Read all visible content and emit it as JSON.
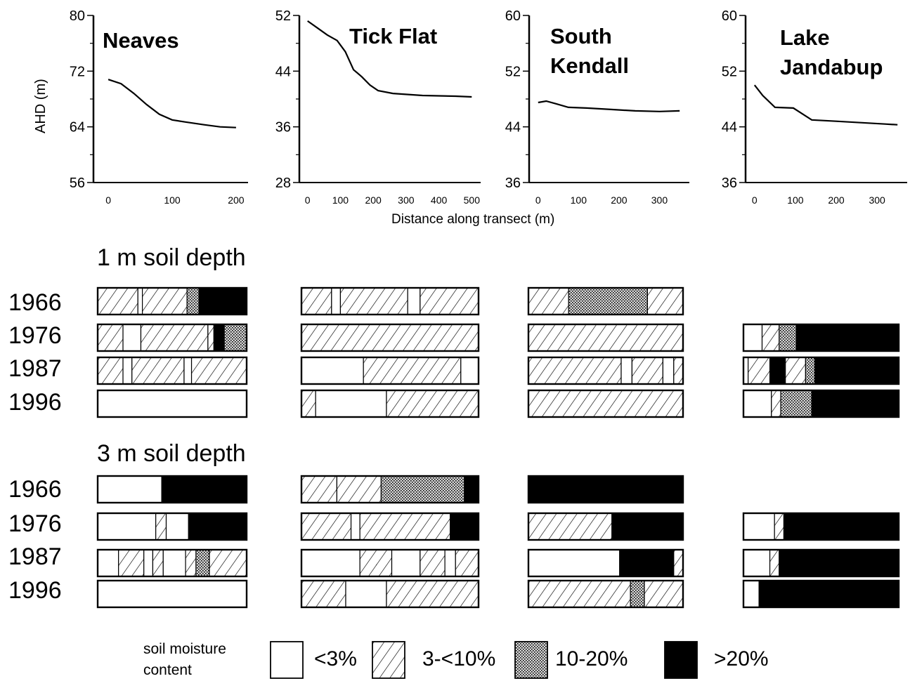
{
  "chart_data": {
    "type": "line",
    "x_label": "Distance along transect (m)",
    "y_label": "AHD (m)",
    "profiles": [
      {
        "name": "Neaves",
        "ylim": [
          56,
          80
        ],
        "yticks": [
          80,
          72,
          64,
          56
        ],
        "xlim": [
          -10,
          210
        ],
        "xticks": [
          0,
          100,
          200
        ],
        "points": [
          [
            0,
            70.8
          ],
          [
            20,
            70.2
          ],
          [
            40,
            68.8
          ],
          [
            60,
            67.2
          ],
          [
            80,
            65.8
          ],
          [
            100,
            65.0
          ],
          [
            120,
            64.7
          ],
          [
            150,
            64.3
          ],
          [
            175,
            64.0
          ],
          [
            200,
            63.9
          ]
        ]
      },
      {
        "name": "Tick Flat",
        "ylim": [
          28,
          52
        ],
        "yticks": [
          52,
          44,
          36,
          28
        ],
        "xlim": [
          -10,
          510
        ],
        "xticks": [
          0,
          100,
          200,
          300,
          400,
          500
        ],
        "points": [
          [
            0,
            51.2
          ],
          [
            30,
            50.2
          ],
          [
            60,
            49.2
          ],
          [
            90,
            48.4
          ],
          [
            115,
            46.8
          ],
          [
            140,
            44.2
          ],
          [
            165,
            43.2
          ],
          [
            190,
            42.0
          ],
          [
            215,
            41.2
          ],
          [
            260,
            40.8
          ],
          [
            350,
            40.5
          ],
          [
            450,
            40.4
          ],
          [
            500,
            40.3
          ]
        ]
      },
      {
        "name": "South Kendall",
        "ylim": [
          36,
          60
        ],
        "yticks": [
          60,
          52,
          44,
          36
        ],
        "xlim": [
          -10,
          360
        ],
        "xticks": [
          0,
          100,
          200,
          300
        ],
        "points": [
          [
            0,
            47.5
          ],
          [
            20,
            47.7
          ],
          [
            45,
            47.3
          ],
          [
            75,
            46.8
          ],
          [
            120,
            46.7
          ],
          [
            180,
            46.5
          ],
          [
            240,
            46.3
          ],
          [
            300,
            46.2
          ],
          [
            350,
            46.3
          ]
        ]
      },
      {
        "name": "Lake Jandabup",
        "ylim": [
          36,
          60
        ],
        "yticks": [
          60,
          52,
          44,
          36
        ],
        "xlim": [
          -10,
          360
        ],
        "xticks": [
          0,
          100,
          200,
          300
        ],
        "points": [
          [
            0,
            50.0
          ],
          [
            20,
            48.5
          ],
          [
            50,
            46.8
          ],
          [
            95,
            46.7
          ],
          [
            140,
            45.0
          ],
          [
            200,
            44.8
          ],
          [
            260,
            44.6
          ],
          [
            320,
            44.4
          ],
          [
            350,
            44.3
          ]
        ]
      }
    ],
    "soil_depths": [
      {
        "heading": "1 m soil depth",
        "years": [
          {
            "year": "1966",
            "bars": [
              [
                [
                  "hatch",
                  0.27
                ],
                [
                  "white",
                  0.03
                ],
                [
                  "hatch",
                  0.3
                ],
                [
                  "dots",
                  0.08
                ],
                [
                  "black",
                  0.32
                ]
              ],
              [
                [
                  "hatch",
                  0.17
                ],
                [
                  "white",
                  0.05
                ],
                [
                  "hatch",
                  0.38
                ],
                [
                  "white",
                  0.07
                ],
                [
                  "hatch",
                  0.33
                ]
              ],
              [
                [
                  "hatch",
                  0.26
                ],
                [
                  "dots",
                  0.51
                ],
                [
                  "hatch",
                  0.23
                ]
              ],
              null
            ]
          },
          {
            "year": "1976",
            "bars": [
              [
                [
                  "hatch",
                  0.17
                ],
                [
                  "white",
                  0.12
                ],
                [
                  "hatch",
                  0.45
                ],
                [
                  "hatch",
                  0.04
                ],
                [
                  "black",
                  0.07
                ],
                [
                  "dots",
                  0.15
                ]
              ],
              [
                [
                  "hatch",
                  1.0
                ]
              ],
              [
                [
                  "hatch",
                  1.0
                ]
              ],
              [
                [
                  "white",
                  0.12
                ],
                [
                  "hatch",
                  0.11
                ],
                [
                  "dots",
                  0.11
                ],
                [
                  "black",
                  0.66
                ]
              ]
            ]
          },
          {
            "year": "1987",
            "bars": [
              [
                [
                  "hatch",
                  0.17
                ],
                [
                  "white",
                  0.06
                ],
                [
                  "hatch",
                  0.35
                ],
                [
                  "white",
                  0.05
                ],
                [
                  "hatch",
                  0.37
                ]
              ],
              [
                [
                  "white",
                  0.35
                ],
                [
                  "hatch",
                  0.55
                ],
                [
                  "white",
                  0.1
                ]
              ],
              [
                [
                  "hatch",
                  0.6
                ],
                [
                  "white",
                  0.07
                ],
                [
                  "hatch",
                  0.2
                ],
                [
                  "white",
                  0.07
                ],
                [
                  "hatch",
                  0.06
                ]
              ],
              [
                [
                  "white",
                  0.03
                ],
                [
                  "hatch",
                  0.14
                ],
                [
                  "black",
                  0.1
                ],
                [
                  "hatch",
                  0.13
                ],
                [
                  "dots",
                  0.06
                ],
                [
                  "black",
                  0.54
                ]
              ]
            ]
          },
          {
            "year": "1996",
            "bars": [
              [
                [
                  "white",
                  1.0
                ]
              ],
              [
                [
                  "hatch",
                  0.08
                ],
                [
                  "white",
                  0.4
                ],
                [
                  "hatch",
                  0.52
                ]
              ],
              [
                [
                  "hatch",
                  1.0
                ]
              ],
              [
                [
                  "white",
                  0.18
                ],
                [
                  "hatch",
                  0.06
                ],
                [
                  "dots",
                  0.2
                ],
                [
                  "black",
                  0.56
                ]
              ]
            ]
          }
        ]
      },
      {
        "heading": "3 m soil depth",
        "years": [
          {
            "year": "1966",
            "bars": [
              [
                [
                  "white",
                  0.43
                ],
                [
                  "black",
                  0.57
                ]
              ],
              [
                [
                  "hatch",
                  0.2
                ],
                [
                  "hatch",
                  0.25
                ],
                [
                  "dots",
                  0.47
                ],
                [
                  "black",
                  0.08
                ]
              ],
              [
                [
                  "black",
                  1.0
                ]
              ],
              null
            ]
          },
          {
            "year": "1976",
            "bars": [
              [
                [
                  "white",
                  0.39
                ],
                [
                  "hatch",
                  0.07
                ],
                [
                  "white",
                  0.15
                ],
                [
                  "black",
                  0.39
                ]
              ],
              [
                [
                  "hatch",
                  0.28
                ],
                [
                  "white",
                  0.05
                ],
                [
                  "hatch",
                  0.51
                ],
                [
                  "black",
                  0.16
                ]
              ],
              [
                [
                  "hatch",
                  0.54
                ],
                [
                  "black",
                  0.46
                ]
              ],
              [
                [
                  "white",
                  0.2
                ],
                [
                  "hatch",
                  0.06
                ],
                [
                  "black",
                  0.74
                ]
              ]
            ]
          },
          {
            "year": "1987",
            "bars": [
              [
                [
                  "white",
                  0.14
                ],
                [
                  "hatch",
                  0.17
                ],
                [
                  "white",
                  0.06
                ],
                [
                  "hatch",
                  0.07
                ],
                [
                  "white",
                  0.15
                ],
                [
                  "hatch",
                  0.07
                ],
                [
                  "dots",
                  0.09
                ],
                [
                  "hatch",
                  0.25
                ]
              ],
              [
                [
                  "white",
                  0.33
                ],
                [
                  "hatch",
                  0.18
                ],
                [
                  "white",
                  0.16
                ],
                [
                  "hatch",
                  0.14
                ],
                [
                  "white",
                  0.06
                ],
                [
                  "hatch",
                  0.13
                ]
              ],
              [
                [
                  "white",
                  0.59
                ],
                [
                  "black",
                  0.35
                ],
                [
                  "hatch",
                  0.06
                ]
              ],
              [
                [
                  "white",
                  0.17
                ],
                [
                  "hatch",
                  0.06
                ],
                [
                  "black",
                  0.77
                ]
              ]
            ]
          },
          {
            "year": "1996",
            "bars": [
              [
                [
                  "white",
                  1.0
                ]
              ],
              [
                [
                  "hatch",
                  0.25
                ],
                [
                  "white",
                  0.23
                ],
                [
                  "hatch",
                  0.52
                ]
              ],
              [
                [
                  "hatch",
                  0.66
                ],
                [
                  "dots",
                  0.09
                ],
                [
                  "hatch",
                  0.25
                ]
              ],
              [
                [
                  "white",
                  0.1
                ],
                [
                  "black",
                  0.9
                ]
              ]
            ]
          }
        ]
      }
    ],
    "legend": {
      "title_line1": "soil moisture",
      "title_line2": "content",
      "items": [
        {
          "key": "white",
          "label": "<3%"
        },
        {
          "key": "hatch",
          "label": "3-<10%"
        },
        {
          "key": "dots",
          "label": "10-20%"
        },
        {
          "key": "black",
          "label": ">20%"
        }
      ]
    }
  }
}
